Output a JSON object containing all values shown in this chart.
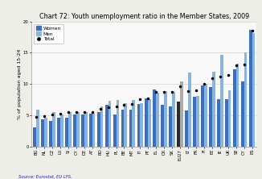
{
  "title": "Chart 72: Youth unemployment ratio in the Member States, 2009",
  "ylabel": "% of population aged 15-24",
  "source": "Source: Eurostat, EU LFS.",
  "countries": [
    "BG",
    "NL",
    "CZ",
    "LU",
    "SI",
    "CY",
    "DE",
    "AT",
    "RO",
    "HU",
    "PL",
    "BE",
    "MT",
    "IT",
    "PT",
    "EL",
    "DK",
    "SK",
    "EU27",
    "LT",
    "FR",
    "FI",
    "EE",
    "IE",
    "UK",
    "SE",
    "CY",
    "ES"
  ],
  "women": [
    3.1,
    4.4,
    4.1,
    4.7,
    4.7,
    5.1,
    5.2,
    5.3,
    5.5,
    6.7,
    5.1,
    5.9,
    5.9,
    6.8,
    7.7,
    9.1,
    6.7,
    6.5,
    7.2,
    5.8,
    8.0,
    9.8,
    9.5,
    7.6,
    7.6,
    12.4,
    10.4,
    18.7
  ],
  "men": [
    5.9,
    4.6,
    5.5,
    5.1,
    5.5,
    5.6,
    5.6,
    5.3,
    6.5,
    7.3,
    7.5,
    6.9,
    7.5,
    7.0,
    7.6,
    8.6,
    8.9,
    8.7,
    10.4,
    11.9,
    8.1,
    10.0,
    12.0,
    14.7,
    9.0,
    13.3,
    15.0,
    18.2
  ],
  "total": [
    4.8,
    4.9,
    5.1,
    5.3,
    5.5,
    5.6,
    5.6,
    5.6,
    6.0,
    6.3,
    6.4,
    6.7,
    6.8,
    7.6,
    7.7,
    8.7,
    8.8,
    8.8,
    9.7,
    8.9,
    9.0,
    10.1,
    11.0,
    11.2,
    11.4,
    13.0,
    13.1,
    18.6
  ],
  "eu27_index": 18,
  "women_color": "#3a6ebf",
  "men_color": "#8ab4d8",
  "eu27_women_color": "#2a2a2a",
  "eu27_men_color": "#aaaaaa",
  "ylim": [
    0,
    20
  ],
  "yticks": [
    0,
    5,
    10,
    15,
    20
  ],
  "background_color": "#eeeee8",
  "plot_bg_color": "#f8f8f8",
  "title_fontsize": 5.8,
  "axis_fontsize": 4.5,
  "tick_fontsize": 3.8,
  "legend_fontsize": 4.2
}
